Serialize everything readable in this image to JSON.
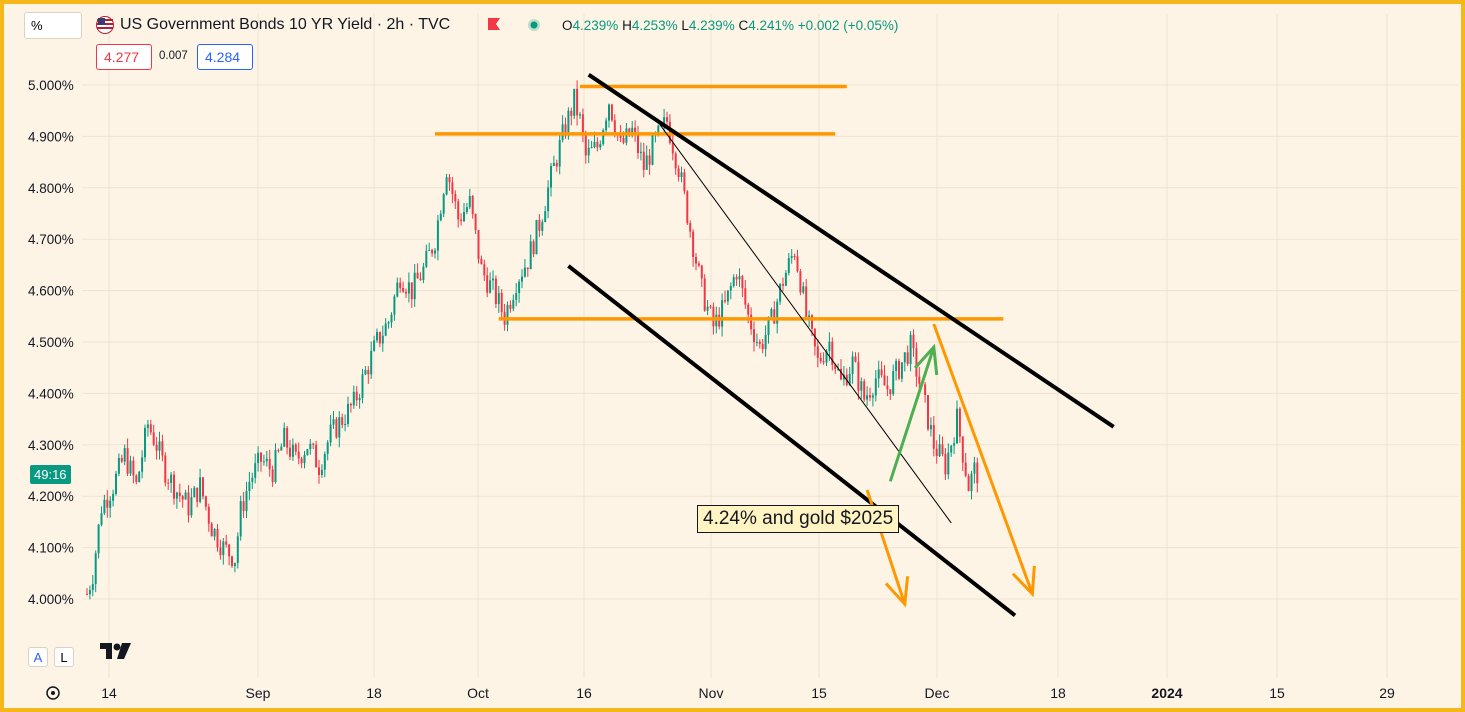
{
  "header": {
    "scale_selector": "%",
    "title": "US Government Bonds 10 YR Yield · 2h · TVC",
    "ohlc": {
      "o_label": "O",
      "o_value": "4.239%",
      "h_label": "H",
      "h_value": "4.253%",
      "l_label": "L",
      "l_value": "4.239%",
      "c_label": "C",
      "c_value": "4.241%",
      "change": "+0.002 (+0.05%)"
    },
    "bid": "4.277",
    "spread": "0.007",
    "ask": "4.284"
  },
  "price_axis": {
    "countdown": "49:16",
    "auto_button": "A",
    "log_button": "L"
  },
  "annotation": "4.24% and gold $2025",
  "logo_text": "TV",
  "colors": {
    "background": "#fdf4e6",
    "frame": "#f5b719",
    "up": "#089981",
    "down": "#f23645",
    "orange_levels": "#ff9800",
    "channel": "#000000",
    "green_arrow": "#4caf50",
    "orange_arrow": "#ff9800"
  },
  "chart_data": {
    "type": "candlestick",
    "title": "US Government Bonds 10 YR Yield · 2h · TVC",
    "y_unit": "%",
    "ylim": [
      3.96,
      5.03
    ],
    "y_ticks": [
      "5.000%",
      "4.900%",
      "4.800%",
      "4.700%",
      "4.600%",
      "4.500%",
      "4.400%",
      "4.300%",
      "4.200%",
      "4.100%",
      "4.000%"
    ],
    "x_ticks": [
      "14",
      "Sep",
      "18",
      "Oct",
      "16",
      "Nov",
      "15",
      "Dec",
      "18",
      "2024",
      "15",
      "29"
    ],
    "grid": true,
    "current_value": 4.241,
    "price_path": [
      [
        0,
        4.01
      ],
      [
        2,
        4.05
      ],
      [
        5,
        4.18
      ],
      [
        9,
        4.22
      ],
      [
        13,
        4.28
      ],
      [
        17,
        4.22
      ],
      [
        21,
        4.34
      ],
      [
        24,
        4.3
      ],
      [
        27,
        4.25
      ],
      [
        31,
        4.21
      ],
      [
        35,
        4.18
      ],
      [
        39,
        4.22
      ],
      [
        43,
        4.14
      ],
      [
        47,
        4.1
      ],
      [
        51,
        4.08
      ],
      [
        53,
        4.17
      ],
      [
        56,
        4.23
      ],
      [
        60,
        4.27
      ],
      [
        64,
        4.25
      ],
      [
        68,
        4.31
      ],
      [
        72,
        4.27
      ],
      [
        76,
        4.3
      ],
      [
        80,
        4.26
      ],
      [
        84,
        4.32
      ],
      [
        88,
        4.35
      ],
      [
        92,
        4.38
      ],
      [
        96,
        4.44
      ],
      [
        100,
        4.5
      ],
      [
        104,
        4.54
      ],
      [
        108,
        4.63
      ],
      [
        112,
        4.6
      ],
      [
        116,
        4.64
      ],
      [
        120,
        4.7
      ],
      [
        124,
        4.84
      ],
      [
        128,
        4.74
      ],
      [
        132,
        4.77
      ],
      [
        136,
        4.64
      ],
      [
        140,
        4.6
      ],
      [
        144,
        4.55
      ],
      [
        148,
        4.62
      ],
      [
        152,
        4.66
      ],
      [
        156,
        4.73
      ],
      [
        160,
        4.82
      ],
      [
        164,
        4.9
      ],
      [
        168,
        4.97
      ],
      [
        170,
        4.93
      ],
      [
        172,
        4.86
      ],
      [
        176,
        4.88
      ],
      [
        180,
        4.97
      ],
      [
        184,
        4.88
      ],
      [
        188,
        4.91
      ],
      [
        192,
        4.84
      ],
      [
        196,
        4.89
      ],
      [
        200,
        4.93
      ],
      [
        204,
        4.84
      ],
      [
        208,
        4.72
      ],
      [
        212,
        4.6
      ],
      [
        216,
        4.53
      ],
      [
        220,
        4.57
      ],
      [
        224,
        4.64
      ],
      [
        228,
        4.55
      ],
      [
        232,
        4.49
      ],
      [
        236,
        4.54
      ],
      [
        240,
        4.62
      ],
      [
        244,
        4.68
      ],
      [
        246,
        4.62
      ],
      [
        248,
        4.55
      ],
      [
        252,
        4.46
      ],
      [
        256,
        4.5
      ],
      [
        260,
        4.42
      ],
      [
        264,
        4.46
      ],
      [
        268,
        4.39
      ],
      [
        272,
        4.43
      ],
      [
        276,
        4.41
      ],
      [
        280,
        4.45
      ],
      [
        284,
        4.49
      ],
      [
        288,
        4.4
      ],
      [
        292,
        4.3
      ],
      [
        296,
        4.26
      ],
      [
        300,
        4.35
      ],
      [
        304,
        4.22
      ],
      [
        306,
        4.25
      ],
      [
        308,
        4.24
      ]
    ],
    "x_domain": [
      0,
      420
    ],
    "horizontal_levels": [
      {
        "y": 4.997,
        "x_from": 170,
        "x_to": 262
      },
      {
        "y": 4.905,
        "x_from": 120,
        "x_to": 258
      },
      {
        "y": 4.545,
        "x_from": 142,
        "x_to": 316
      }
    ],
    "channel_lines": [
      {
        "x1": 173,
        "y1": 5.02,
        "x2": 354,
        "y2": 4.335
      },
      {
        "x1": 166,
        "y1": 4.648,
        "x2": 320,
        "y2": 3.968
      },
      {
        "x1": 196,
        "y1": 4.935,
        "x2": 298,
        "y2": 4.148
      }
    ],
    "arrows": [
      {
        "color": "green",
        "from": [
          277,
          4.229
        ],
        "to": [
          292,
          4.49
        ]
      },
      {
        "color": "orange",
        "from": [
          269,
          4.212
        ],
        "to": [
          282,
          3.99
        ]
      },
      {
        "color": "orange",
        "from": [
          292,
          4.535
        ],
        "to": [
          326,
          4.01
        ]
      }
    ]
  }
}
